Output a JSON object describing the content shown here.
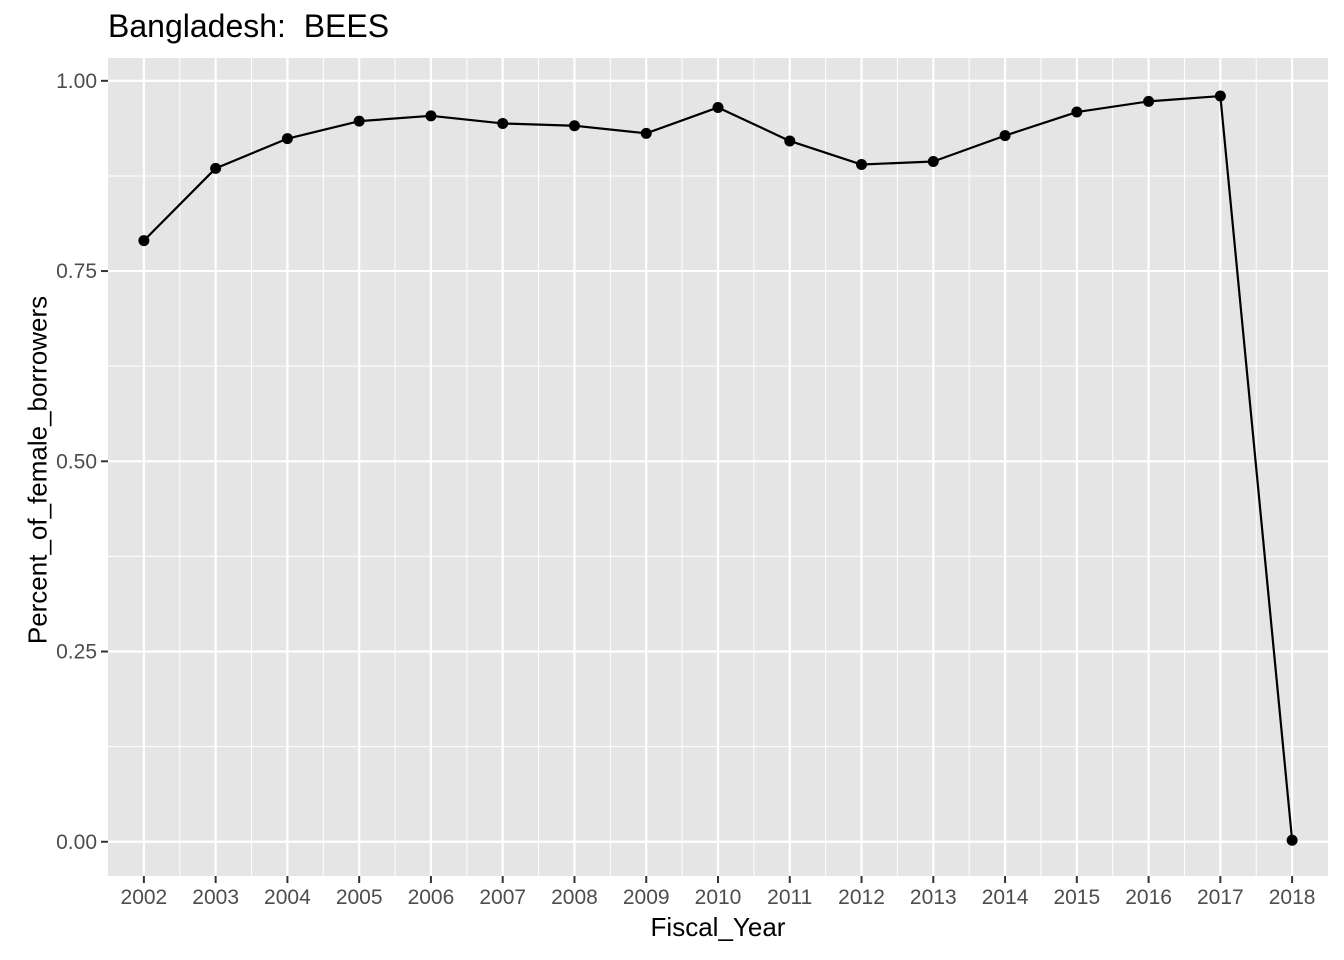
{
  "chart_data": {
    "type": "line",
    "title": "Bangladesh:  BEES",
    "xlabel": "Fiscal_Year",
    "ylabel": "Percent_of_female_borrowers",
    "x": [
      2002,
      2003,
      2004,
      2005,
      2006,
      2007,
      2008,
      2009,
      2010,
      2011,
      2012,
      2013,
      2014,
      2015,
      2016,
      2017,
      2018
    ],
    "y": [
      0.79,
      0.885,
      0.924,
      0.947,
      0.954,
      0.944,
      0.941,
      0.931,
      0.965,
      0.921,
      0.89,
      0.894,
      0.928,
      0.959,
      0.973,
      0.98,
      0.002
    ],
    "xlim": [
      2001.5,
      2018.5
    ],
    "ylim": [
      -0.045,
      1.03
    ],
    "yticks": [
      0.0,
      0.25,
      0.5,
      0.75,
      1.0
    ],
    "ytick_labels": [
      "0.00",
      "0.25",
      "0.50",
      "0.75",
      "1.00"
    ],
    "xtick_labels": [
      "2002",
      "2003",
      "2004",
      "2005",
      "2006",
      "2007",
      "2008",
      "2009",
      "2010",
      "2011",
      "2012",
      "2013",
      "2014",
      "2015",
      "2016",
      "2017",
      "2018"
    ],
    "grid": true,
    "legend": "none",
    "colors": {
      "panel_background": "#e5e5e5",
      "grid": "#ffffff",
      "line": "#000000",
      "point": "#000000",
      "tick_label": "#4d4d4d",
      "tick": "#333333"
    }
  }
}
